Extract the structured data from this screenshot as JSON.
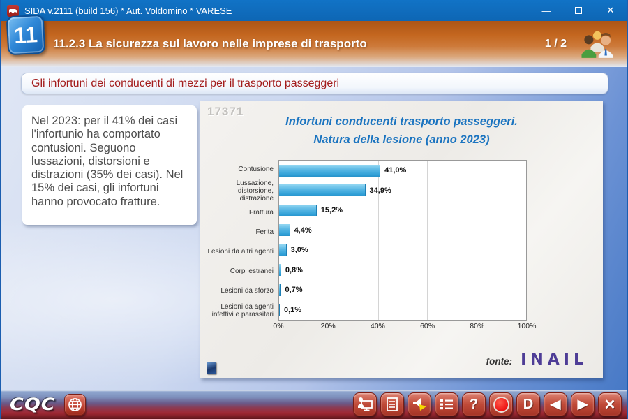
{
  "window": {
    "title": "SIDA v.2111 (build 156) * Aut. Voldomino * VARESE",
    "controls": {
      "minimize": "—",
      "close": "✕"
    }
  },
  "header": {
    "badge": "11",
    "title": "11.2.3 La sicurezza sul lavoro nelle imprese di trasporto",
    "page_indicator": "1 / 2"
  },
  "subtitle": "Gli infortuni dei conducenti di mezzi per il trasporto passeggeri",
  "info_text": "Nel 2023: per il 41% dei casi l'infortunio ha comportato contusioni. Seguono lussazioni, distorsioni e distrazioni (35% dei casi). Nel 15% dei casi, gli infortuni hanno provocato fratture.",
  "slide_code": "17371",
  "chart_data": {
    "type": "bar",
    "orientation": "horizontal",
    "title_line1": "Infortuni conducenti trasporto passeggeri.",
    "title_line2": "Natura della lesione (anno 2023)",
    "categories": [
      [
        "Contusione"
      ],
      [
        "Lussazione,",
        "distorsione, distrazione"
      ],
      [
        "Frattura"
      ],
      [
        "Ferita"
      ],
      [
        "Lesioni da altri agenti"
      ],
      [
        "Corpi estranei"
      ],
      [
        "Lesioni da sforzo"
      ],
      [
        "Lesioni da agenti",
        "infettivi e parassitari"
      ]
    ],
    "values": [
      41.0,
      34.9,
      15.2,
      4.4,
      3.0,
      0.8,
      0.7,
      0.1
    ],
    "value_labels": [
      "41,0%",
      "34,9%",
      "15,2%",
      "4,4%",
      "3,0%",
      "0,8%",
      "0,7%",
      "0,1%"
    ],
    "x_tick_labels": [
      "0%",
      "20%",
      "40%",
      "60%",
      "80%",
      "100%"
    ],
    "x_tick_positions": [
      0,
      20,
      40,
      60,
      80,
      100
    ],
    "xlim": [
      0,
      100
    ],
    "grid": true,
    "legend_position": "none",
    "bar_color": "#45aede"
  },
  "source": {
    "label": "fonte:",
    "logo": "INAIL"
  },
  "footer": {
    "logo": "CQC",
    "buttons": [
      {
        "name": "presenter",
        "label": ""
      },
      {
        "name": "document",
        "label": ""
      },
      {
        "name": "audio",
        "label": ""
      },
      {
        "name": "list",
        "label": ""
      },
      {
        "name": "help",
        "label": "?"
      },
      {
        "name": "record",
        "label": ""
      },
      {
        "name": "demo",
        "label": "D"
      },
      {
        "name": "back",
        "label": "◀"
      },
      {
        "name": "forward",
        "label": "▶"
      },
      {
        "name": "close",
        "label": "✕"
      }
    ]
  },
  "colors": {
    "titlebar_blue": "#0f6cc0",
    "header_orange": "#c3661f",
    "subtitle_red": "#a31c1c",
    "chart_title_blue": "#1b74c0",
    "bar_blue": "#45aede",
    "inail_purple": "#4e3d96",
    "footer_red": "#a02833"
  }
}
